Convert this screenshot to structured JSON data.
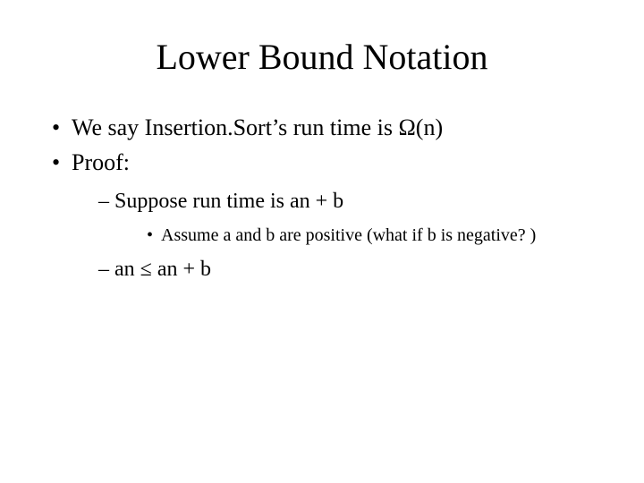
{
  "title": "Lower Bound Notation",
  "bullets": {
    "b1": "We say Insertion.Sort’s run time is Ω(n)",
    "b2": "Proof:",
    "b2_1": "Suppose run time is an + b",
    "b2_1_1": "Assume a and b are positive (what if b is negative? )",
    "b2_2": "an ≤ an + b"
  },
  "style": {
    "background_color": "#ffffff",
    "text_color": "#000000",
    "font_family": "Times New Roman",
    "title_fontsize": 40,
    "lvl1_fontsize": 26,
    "lvl2_fontsize": 24,
    "lvl3_fontsize": 20
  }
}
